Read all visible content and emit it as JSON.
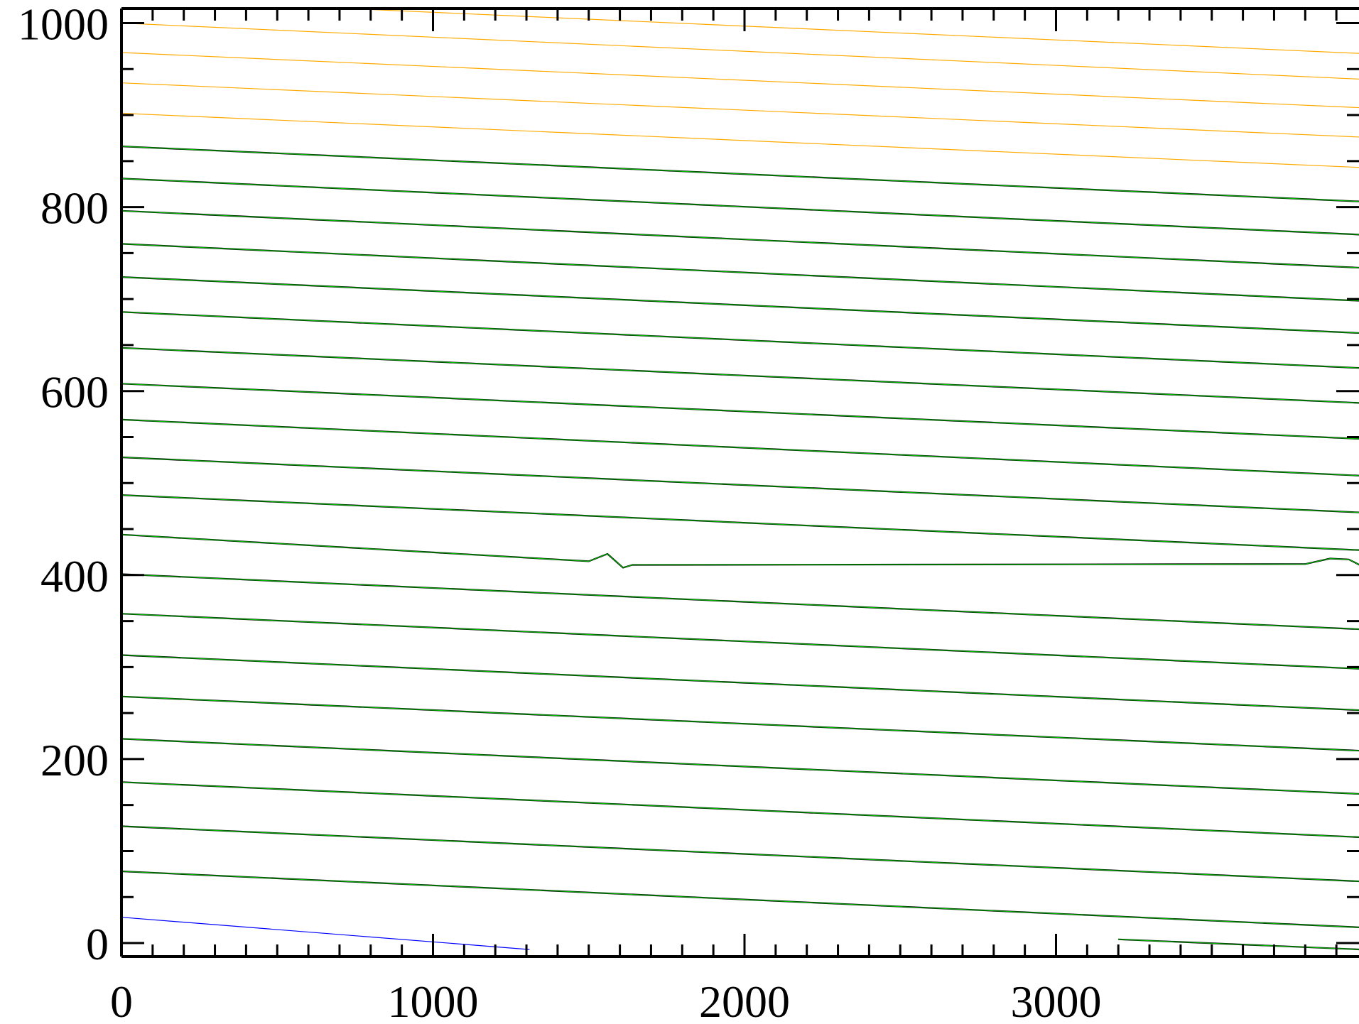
{
  "chart_data": {
    "type": "line",
    "title": "",
    "xlabel": "",
    "ylabel": "",
    "xlim": [
      0,
      3980
    ],
    "ylim": [
      -7,
      1023
    ],
    "grid": false,
    "legend": "none",
    "x_ticks": [
      0,
      1000,
      2000,
      3000
    ],
    "x_tick_labels": [
      "0",
      "1000",
      "2000",
      "3000"
    ],
    "y_ticks": [
      0,
      200,
      400,
      600,
      800,
      1000
    ],
    "y_tick_labels": [
      "0",
      "200",
      "400",
      "600",
      "800",
      "1000"
    ],
    "x_minor_step": 100,
    "y_minor_step": 50,
    "colors": {
      "data": "#000000",
      "fit": "#00c000",
      "extrapolated": "#ffaa00",
      "lower": "#0000ff"
    },
    "series": [
      {
        "style": "extrapolated",
        "x": [
          450,
          3980
        ],
        "y": [
          1020,
          967
        ]
      },
      {
        "style": "extrapolated",
        "x": [
          0,
          3980
        ],
        "y": [
          1000,
          939
        ]
      },
      {
        "style": "extrapolated",
        "x": [
          0,
          3980
        ],
        "y": [
          968,
          908
        ]
      },
      {
        "style": "extrapolated",
        "x": [
          0,
          3980
        ],
        "y": [
          935,
          876
        ]
      },
      {
        "style": "extrapolated",
        "x": [
          0,
          3980
        ],
        "y": [
          902,
          843
        ]
      },
      {
        "style": "data+fit",
        "x": [
          0,
          3980
        ],
        "y": [
          866,
          806
        ]
      },
      {
        "style": "data+fit",
        "x": [
          0,
          3980
        ],
        "y": [
          831,
          770
        ]
      },
      {
        "style": "data+fit",
        "x": [
          0,
          3980
        ],
        "y": [
          796,
          734
        ]
      },
      {
        "style": "data+fit",
        "x": [
          0,
          3980
        ],
        "y": [
          760,
          698
        ]
      },
      {
        "style": "data+fit",
        "x": [
          0,
          3980
        ],
        "y": [
          724,
          663
        ]
      },
      {
        "style": "data+fit",
        "x": [
          0,
          3980
        ],
        "y": [
          686,
          625
        ]
      },
      {
        "style": "data+fit",
        "x": [
          0,
          3980
        ],
        "y": [
          647,
          587
        ]
      },
      {
        "style": "data+fit",
        "x": [
          0,
          3980
        ],
        "y": [
          608,
          548
        ]
      },
      {
        "style": "data+fit",
        "x": [
          0,
          3980
        ],
        "y": [
          569,
          508
        ]
      },
      {
        "style": "data+fit",
        "x": [
          0,
          3980
        ],
        "y": [
          528,
          468
        ]
      },
      {
        "style": "data+fit",
        "x": [
          0,
          3980
        ],
        "y": [
          487,
          427
        ]
      },
      {
        "style": "data+fit",
        "x": [
          0,
          1500,
          1560,
          1610,
          1640,
          3800,
          3880,
          3940,
          3980
        ],
        "y": [
          444,
          415,
          423,
          408,
          411,
          412,
          418,
          417,
          410
        ]
      },
      {
        "style": "data+fit",
        "x": [
          0,
          3980
        ],
        "y": [
          401,
          341
        ]
      },
      {
        "style": "data+fit",
        "x": [
          0,
          3980
        ],
        "y": [
          358,
          298
        ]
      },
      {
        "style": "data+fit",
        "x": [
          0,
          3980
        ],
        "y": [
          313,
          253
        ]
      },
      {
        "style": "data+fit",
        "x": [
          0,
          3980
        ],
        "y": [
          268,
          209
        ]
      },
      {
        "style": "data+fit",
        "x": [
          0,
          3980
        ],
        "y": [
          222,
          162
        ]
      },
      {
        "style": "data+fit",
        "x": [
          0,
          3980
        ],
        "y": [
          175,
          115
        ]
      },
      {
        "style": "data+fit",
        "x": [
          0,
          3980
        ],
        "y": [
          127,
          67
        ]
      },
      {
        "style": "data+fit",
        "x": [
          0,
          3980
        ],
        "y": [
          78,
          17
        ]
      },
      {
        "style": "data+fit",
        "x": [
          3200,
          3980
        ],
        "y": [
          4,
          -7
        ]
      },
      {
        "style": "lower",
        "x": [
          0,
          1310
        ],
        "y": [
          28,
          -7
        ]
      }
    ]
  }
}
